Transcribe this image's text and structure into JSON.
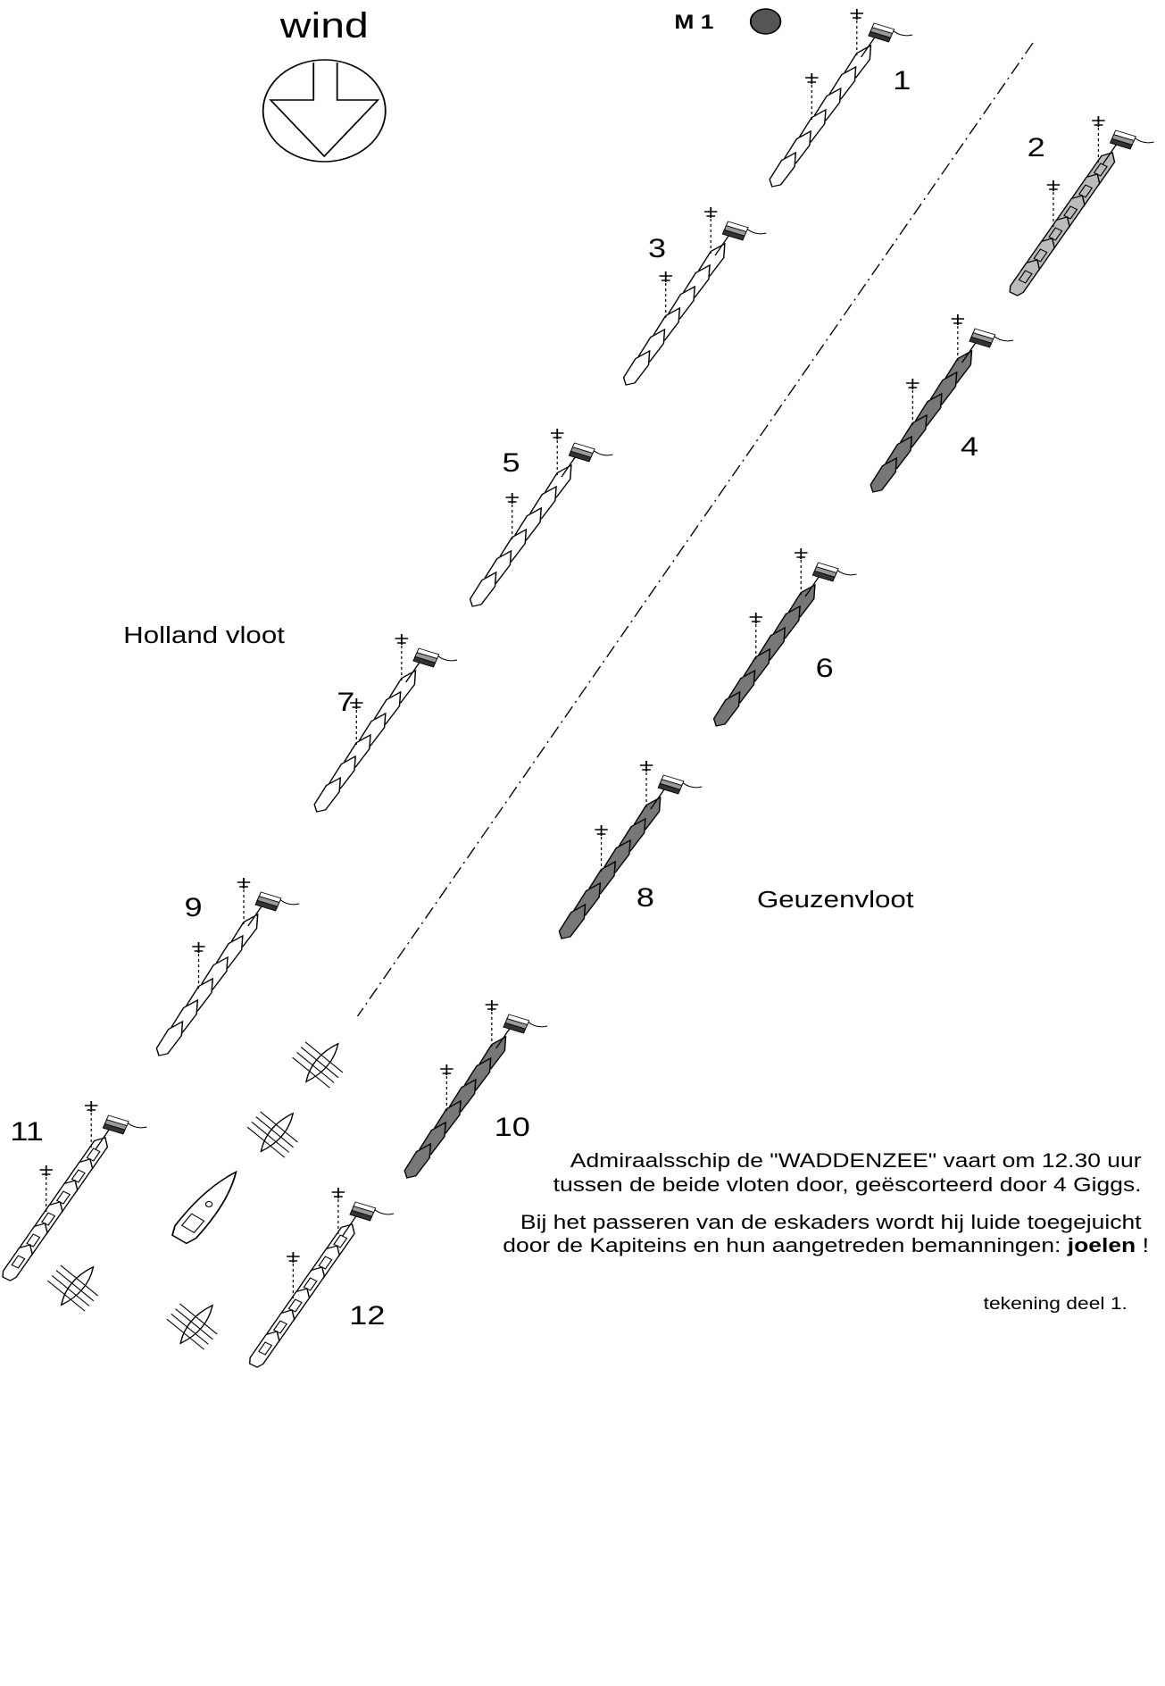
{
  "wind": "wind",
  "marker": "M 1",
  "squadrons": [
    "1",
    "2",
    "3",
    "4",
    "5",
    "6",
    "7",
    "8",
    "9",
    "10",
    "11",
    "12"
  ],
  "fleets": {
    "holland": "Holland vloot",
    "geuzen": "Geuzenvloot"
  },
  "caption": {
    "line1": "Admiraalsschip de \"WADDENZEE\" vaart om 12.30 uur",
    "line2": "tussen de beide vloten door, geëscorteerd door 4 Giggs.",
    "line3": "Bij het passeren van de eskaders wordt hij luide toegejuicht",
    "line4": "door de Kapiteins en hun aangetreden bemanningen: ",
    "line4_bold": "joelen",
    "line4_end": " !"
  },
  "footer": "tekening deel 1."
}
